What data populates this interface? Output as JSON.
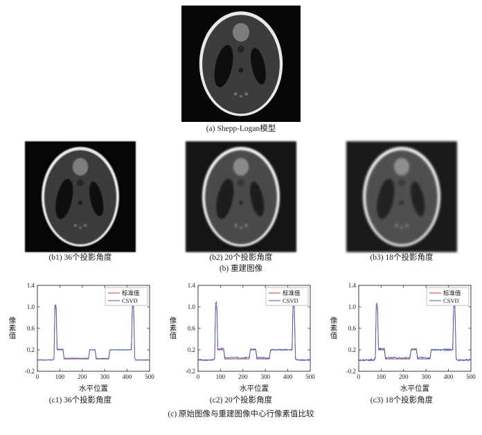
{
  "figure": {
    "panel_a": {
      "caption": "(a) Shepp-Logan模型"
    },
    "panel_b": {
      "caption": "(b) 重建图像",
      "items": [
        {
          "caption": "(b1) 36个投影角度"
        },
        {
          "caption": "(b2) 20个投影角度"
        },
        {
          "caption": "(b3) 18个投影角度"
        }
      ]
    },
    "panel_c": {
      "caption": "(c) 原始图像与重建图像中心行像素值比较",
      "items": [
        {
          "caption": "(c1) 36个投影角度"
        },
        {
          "caption": "(c2) 20个投影角度"
        },
        {
          "caption": "(c3) 18个投影角度"
        }
      ]
    }
  },
  "chart_data": [
    {
      "type": "line",
      "title": "(c1) 36个投影角度",
      "xlabel": "水平位置",
      "ylabel": "像素值",
      "xlim": [
        0,
        500
      ],
      "ylim": [
        -0.2,
        1.4
      ],
      "xticks": [
        0,
        100,
        200,
        300,
        400,
        500
      ],
      "xtick_labels": [
        "0",
        "100",
        "200",
        "300",
        "400",
        "500"
      ],
      "yticks": [
        -0.2,
        0.2,
        0.6,
        1.0,
        1.4
      ],
      "ytick_labels": [
        "-0.2",
        "0.2",
        "0.6",
        "1.0",
        "1.4"
      ],
      "legend_position": "top-right",
      "series": [
        {
          "name": "标准值",
          "color": "#c0392b",
          "noise": 0,
          "points": [
            [
              0,
              0.01
            ],
            [
              69,
              0.01
            ],
            [
              74,
              0.04
            ],
            [
              78,
              1.0
            ],
            [
              84,
              1.0
            ],
            [
              88,
              0.2
            ],
            [
              114,
              0.2
            ],
            [
              119,
              0.03
            ],
            [
              228,
              0.03
            ],
            [
              233,
              0.2
            ],
            [
              257,
              0.2
            ],
            [
              262,
              0.03
            ],
            [
              318,
              0.03
            ],
            [
              323,
              0.2
            ],
            [
              419,
              0.2
            ],
            [
              423,
              1.0
            ],
            [
              429,
              1.0
            ],
            [
              434,
              0.04
            ],
            [
              438,
              0.01
            ],
            [
              500,
              0.01
            ]
          ]
        },
        {
          "name": "CSVD",
          "color": "#3b5fc0",
          "noise": 0.007,
          "points": [
            [
              0,
              0.01
            ],
            [
              69,
              0.01
            ],
            [
              74,
              0.05
            ],
            [
              78,
              1.04
            ],
            [
              83,
              1.04
            ],
            [
              88,
              0.21
            ],
            [
              114,
              0.21
            ],
            [
              119,
              0.04
            ],
            [
              228,
              0.04
            ],
            [
              233,
              0.2
            ],
            [
              257,
              0.2
            ],
            [
              262,
              0.04
            ],
            [
              318,
              0.04
            ],
            [
              323,
              0.2
            ],
            [
              419,
              0.2
            ],
            [
              423,
              1.05
            ],
            [
              428,
              1.05
            ],
            [
              434,
              0.05
            ],
            [
              438,
              0.01
            ],
            [
              500,
              0.01
            ]
          ]
        }
      ]
    },
    {
      "type": "line",
      "title": "(c2) 20个投影角度",
      "xlabel": "水平位置",
      "ylabel": "像素值",
      "xlim": [
        0,
        500
      ],
      "ylim": [
        -0.2,
        1.4
      ],
      "xticks": [
        0,
        100,
        200,
        300,
        400,
        500
      ],
      "xtick_labels": [
        "0",
        "100",
        "200",
        "300",
        "400",
        "500"
      ],
      "yticks": [
        -0.2,
        0.2,
        0.6,
        1.0,
        1.4
      ],
      "ytick_labels": [
        "-0.2",
        "0.2",
        "0.6",
        "1.0",
        "1.4"
      ],
      "legend_position": "top-right",
      "series": [
        {
          "name": "标准值",
          "color": "#c0392b",
          "noise": 0,
          "points": [
            [
              0,
              0.01
            ],
            [
              69,
              0.01
            ],
            [
              74,
              0.04
            ],
            [
              78,
              1.0
            ],
            [
              84,
              1.0
            ],
            [
              88,
              0.2
            ],
            [
              114,
              0.2
            ],
            [
              119,
              0.03
            ],
            [
              228,
              0.03
            ],
            [
              233,
              0.2
            ],
            [
              257,
              0.2
            ],
            [
              262,
              0.03
            ],
            [
              318,
              0.03
            ],
            [
              323,
              0.2
            ],
            [
              419,
              0.2
            ],
            [
              423,
              1.0
            ],
            [
              429,
              1.0
            ],
            [
              434,
              0.04
            ],
            [
              438,
              0.01
            ],
            [
              500,
              0.01
            ]
          ]
        },
        {
          "name": "CSVD",
          "color": "#3b5fc0",
          "noise": 0.013,
          "points": [
            [
              0,
              0.01
            ],
            [
              69,
              0.01
            ],
            [
              74,
              0.06
            ],
            [
              78,
              1.08
            ],
            [
              83,
              1.08
            ],
            [
              88,
              0.22
            ],
            [
              114,
              0.22
            ],
            [
              119,
              0.05
            ],
            [
              228,
              0.05
            ],
            [
              233,
              0.21
            ],
            [
              257,
              0.21
            ],
            [
              262,
              0.05
            ],
            [
              318,
              0.05
            ],
            [
              323,
              0.2
            ],
            [
              419,
              0.2
            ],
            [
              423,
              1.07
            ],
            [
              428,
              1.07
            ],
            [
              434,
              0.06
            ],
            [
              438,
              0.01
            ],
            [
              500,
              0.01
            ]
          ]
        }
      ]
    },
    {
      "type": "line",
      "title": "(c3) 18个投影角度",
      "xlabel": "水平位置",
      "ylabel": "像素值",
      "xlim": [
        0,
        500
      ],
      "ylim": [
        -0.2,
        1.4
      ],
      "xticks": [
        0,
        100,
        200,
        300,
        400,
        500
      ],
      "xtick_labels": [
        "0",
        "100",
        "200",
        "300",
        "400",
        "500"
      ],
      "yticks": [
        -0.2,
        0.2,
        0.6,
        1.0,
        1.4
      ],
      "ytick_labels": [
        "-0.2",
        "0.2",
        "0.6",
        "1.0",
        "1.4"
      ],
      "legend_position": "top-right",
      "series": [
        {
          "name": "标准值",
          "color": "#c0392b",
          "noise": 0,
          "points": [
            [
              0,
              0.01
            ],
            [
              69,
              0.01
            ],
            [
              74,
              0.04
            ],
            [
              78,
              1.0
            ],
            [
              84,
              1.0
            ],
            [
              88,
              0.2
            ],
            [
              114,
              0.2
            ],
            [
              119,
              0.03
            ],
            [
              228,
              0.03
            ],
            [
              233,
              0.2
            ],
            [
              257,
              0.2
            ],
            [
              262,
              0.03
            ],
            [
              318,
              0.03
            ],
            [
              323,
              0.2
            ],
            [
              419,
              0.2
            ],
            [
              423,
              1.0
            ],
            [
              429,
              1.0
            ],
            [
              434,
              0.04
            ],
            [
              438,
              0.01
            ],
            [
              500,
              0.01
            ]
          ]
        },
        {
          "name": "CSVD",
          "color": "#3b5fc0",
          "noise": 0.016,
          "points": [
            [
              0,
              0.01
            ],
            [
              69,
              0.01
            ],
            [
              74,
              0.06
            ],
            [
              78,
              1.06
            ],
            [
              83,
              1.06
            ],
            [
              88,
              0.22
            ],
            [
              114,
              0.22
            ],
            [
              119,
              0.05
            ],
            [
              228,
              0.05
            ],
            [
              233,
              0.21
            ],
            [
              257,
              0.21
            ],
            [
              262,
              0.05
            ],
            [
              318,
              0.05
            ],
            [
              323,
              0.2
            ],
            [
              419,
              0.2
            ],
            [
              423,
              1.05
            ],
            [
              428,
              1.05
            ],
            [
              434,
              0.06
            ],
            [
              438,
              0.01
            ],
            [
              500,
              0.01
            ]
          ]
        }
      ]
    }
  ]
}
